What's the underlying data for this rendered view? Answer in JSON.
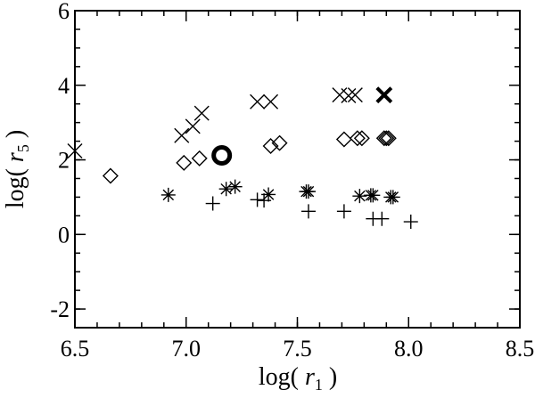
{
  "chart_data": {
    "type": "scatter",
    "xlabel": {
      "prefix": "log( ",
      "var": "r",
      "sub": "1",
      "suffix": " )"
    },
    "ylabel": {
      "prefix": "log( ",
      "var": "r",
      "sub": "5",
      "suffix": " )"
    },
    "xlim": [
      6.5,
      8.5
    ],
    "ylim": [
      -2.5,
      6.0
    ],
    "xticks": [
      {
        "value": 6.5,
        "label": "6.5"
      },
      {
        "value": 7.0,
        "label": "7.0"
      },
      {
        "value": 7.5,
        "label": "7.5"
      },
      {
        "value": 8.0,
        "label": "8.0"
      },
      {
        "value": 8.5,
        "label": "8.5"
      }
    ],
    "yticks": [
      {
        "value": -2,
        "label": "-2"
      },
      {
        "value": 0,
        "label": "0"
      },
      {
        "value": 2,
        "label": "2"
      },
      {
        "value": 4,
        "label": "4"
      },
      {
        "value": 6,
        "label": "6"
      }
    ],
    "x_minor_step": 0.1,
    "y_minor_step": 0.5,
    "grid": false,
    "legend": "none",
    "series": [
      {
        "marker": "cross-x",
        "points": [
          [
            6.5,
            2.24
          ],
          [
            6.98,
            2.65
          ],
          [
            7.03,
            2.9
          ],
          [
            7.07,
            3.25
          ],
          [
            7.32,
            3.56
          ],
          [
            7.38,
            3.56
          ],
          [
            7.69,
            3.74
          ],
          [
            7.73,
            3.72
          ],
          [
            7.76,
            3.74
          ],
          [
            7.89,
            3.74,
            "bold"
          ]
        ]
      },
      {
        "marker": "diamond",
        "points": [
          [
            6.66,
            1.57
          ],
          [
            6.99,
            1.92
          ],
          [
            7.06,
            2.04
          ],
          [
            7.38,
            2.37
          ],
          [
            7.42,
            2.45
          ],
          [
            7.71,
            2.55
          ],
          [
            7.77,
            2.58
          ],
          [
            7.79,
            2.58
          ],
          [
            7.89,
            2.58
          ],
          [
            7.9,
            2.58
          ],
          [
            7.91,
            2.58
          ]
        ]
      },
      {
        "marker": "circle",
        "points": [
          [
            7.16,
            2.12,
            "bold"
          ]
        ]
      },
      {
        "marker": "asterisk",
        "points": [
          [
            6.92,
            1.06
          ],
          [
            7.18,
            1.22
          ],
          [
            7.22,
            1.28
          ],
          [
            7.37,
            1.07
          ],
          [
            7.54,
            1.15
          ],
          [
            7.55,
            1.15
          ],
          [
            7.78,
            1.03
          ],
          [
            7.83,
            1.05
          ],
          [
            7.84,
            1.05
          ],
          [
            7.92,
            1.0
          ],
          [
            7.93,
            1.0
          ]
        ]
      },
      {
        "marker": "plus",
        "points": [
          [
            7.12,
            0.83
          ],
          [
            7.32,
            0.93
          ],
          [
            7.35,
            0.91
          ],
          [
            7.55,
            0.62
          ],
          [
            7.71,
            0.62
          ],
          [
            7.84,
            0.42
          ],
          [
            7.88,
            0.42
          ],
          [
            8.01,
            0.34
          ]
        ]
      }
    ]
  }
}
